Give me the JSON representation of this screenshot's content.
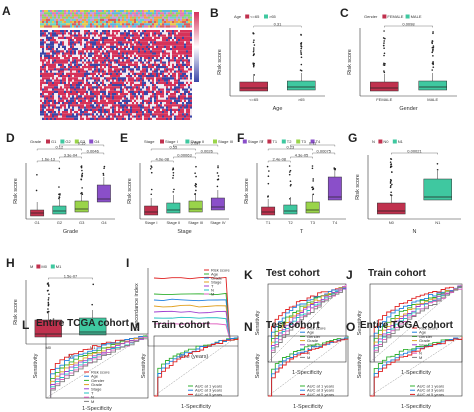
{
  "figure": {
    "panels": [
      {
        "id": "A",
        "letter": "A"
      },
      {
        "id": "B",
        "letter": "B",
        "legend_title": "Age",
        "legend_items": [
          "<=65",
          ">65"
        ],
        "xlabel": "Age",
        "ylabel": "Risk score",
        "categories": [
          "<=65",
          ">65"
        ],
        "pvals": [
          "0.31"
        ]
      },
      {
        "id": "C",
        "letter": "C",
        "legend_title": "Gender",
        "legend_items": [
          "FEMALE",
          "MALE"
        ],
        "xlabel": "Gender",
        "ylabel": "Risk score",
        "categories": [
          "FEMALE",
          "MALE"
        ],
        "pvals": [
          "0.0098"
        ]
      },
      {
        "id": "D",
        "letter": "D",
        "legend_title": "Grade",
        "legend_items": [
          "G1",
          "G2",
          "G3",
          "G4"
        ],
        "xlabel": "Grade",
        "ylabel": "Risk score",
        "categories": [
          "G1",
          "G2",
          "G3",
          "G4"
        ],
        "pvals": [
          "1.6e-13",
          "3.3e-04",
          "0.0046",
          "0.12",
          "0.15"
        ]
      },
      {
        "id": "E",
        "letter": "E",
        "legend_title": "Stage",
        "legend_items": [
          "Stage I",
          "Stage II",
          "Stage III",
          "Stage IV"
        ],
        "xlabel": "Stage",
        "ylabel": "Risk score",
        "categories": [
          "Stage I",
          "Stage II",
          "Stage III",
          "Stage IV"
        ],
        "pvals": [
          "4.0e-08",
          "0.00063",
          "0.0026",
          "0.55",
          "0.097"
        ]
      },
      {
        "id": "F",
        "letter": "F",
        "legend_title": "T",
        "legend_items": [
          "T1",
          "T2",
          "T3",
          "T4"
        ],
        "xlabel": "T",
        "ylabel": "Risk score",
        "categories": [
          "T1",
          "T2",
          "T3",
          "T4"
        ],
        "pvals": [
          "2.4e-08",
          "4.3e-05",
          "0.00075",
          "0.23",
          "0.11"
        ]
      },
      {
        "id": "G",
        "letter": "G",
        "legend_title": "N",
        "legend_items": [
          "N0",
          "N1"
        ],
        "xlabel": "N",
        "ylabel": "Risk score",
        "categories": [
          "N0",
          "N1"
        ],
        "pvals": [
          "0.00021"
        ]
      },
      {
        "id": "H",
        "letter": "H",
        "legend_title": "M",
        "legend_items": [
          "M0",
          "M1"
        ],
        "xlabel": "M",
        "ylabel": "Risk score",
        "categories": [
          "M0",
          "M1"
        ],
        "pvals": [
          "1.5e-07"
        ]
      },
      {
        "id": "I",
        "letter": "I",
        "xlabel": "Time (years)",
        "ylabel": "Concordance index",
        "legend_items": [
          "Risk score",
          "Age",
          "Grade",
          "Stage",
          "T",
          "N",
          "M"
        ]
      },
      {
        "id": "J",
        "letter": "J",
        "title": "Train cohort",
        "xlabel": "1-Specificity",
        "ylabel": "Sensitivity",
        "legend_items": [
          "Risk score",
          "Age",
          "Gender",
          "Grade",
          "Stage",
          "T",
          "N",
          "M"
        ]
      },
      {
        "id": "K",
        "letter": "K",
        "title": "Test cohort",
        "xlabel": "1-Specificity",
        "ylabel": "Sensitivity",
        "legend_items": [
          "Risk score",
          "Age",
          "Gender",
          "Grade",
          "Stage",
          "T",
          "N",
          "M"
        ]
      },
      {
        "id": "L",
        "letter": "L",
        "title": "Entire TCGA cohort",
        "xlabel": "1-Specificity",
        "ylabel": "Sensitivity",
        "legend_items": [
          "Risk score",
          "Age",
          "Gender",
          "Grade",
          "Stage",
          "T",
          "N",
          "M"
        ]
      },
      {
        "id": "M",
        "letter": "M",
        "title": "Train cohort",
        "xlabel": "1-Specificity",
        "ylabel": "Sensitivity",
        "legend_items": [
          "AUC at 1 years",
          "AUC at 3 years",
          "AUC at 5 years"
        ]
      },
      {
        "id": "N",
        "letter": "N",
        "title": "Test cohort",
        "xlabel": "1-Specificity",
        "ylabel": "Sensitivity",
        "legend_items": [
          "AUC at 1 years",
          "AUC at 3 years",
          "AUC at 5 years"
        ]
      },
      {
        "id": "O",
        "letter": "O",
        "title": "Entire TCGA cohort",
        "xlabel": "1-Specificity",
        "ylabel": "Sensitivity",
        "legend_items": [
          "AUC at 1 years",
          "AUC at 3 years",
          "AUC at 5 years"
        ]
      }
    ]
  },
  "colors": {
    "box1": "#c0314e",
    "box2": "#3fc8a0",
    "box3": "#9ad44a",
    "box4": "#8a4fc9",
    "heat_high": "#d6325a",
    "heat_low": "#3a46a8",
    "roc_red": "#e02020",
    "roc_line2": "#2080e0",
    "roc_line3": "#30b030",
    "roc_line4": "#e0a020",
    "roc_line5": "#a040d0",
    "roc_line6": "#20c0c0",
    "roc_line7": "#e060c0",
    "roc_line8": "#808080"
  }
}
